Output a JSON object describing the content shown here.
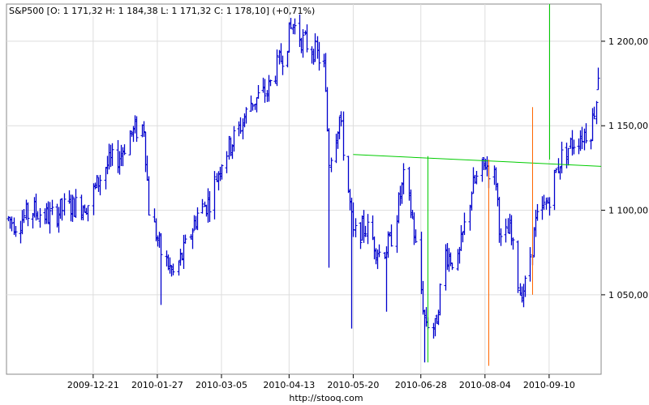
{
  "chart_data": {
    "type": "ohlc",
    "title": "S&P500 [O: 1 171,32  H: 1 184,38  L: 1 171,32  C: 1 178,10] (+0,71%)",
    "xlabel": "",
    "ylabel": "",
    "footer": "http://stooq.com",
    "ylim": [
      1003,
      1222
    ],
    "yticks": [
      "1 050,00",
      "1 100,00",
      "1 150,00",
      "1 200,00"
    ],
    "ytick_values": [
      1050,
      1100,
      1150,
      1200
    ],
    "xticks": [
      "2009-12-21",
      "2010-01-27",
      "2010-03-05",
      "2010-04-13",
      "2010-05-20",
      "2010-06-28",
      "2010-08-04",
      "2010-09-10"
    ],
    "xtick_dates": [
      "2009-12-21",
      "2010-01-27",
      "2010-03-05",
      "2010-04-13",
      "2010-05-20",
      "2010-06-28",
      "2010-08-04",
      "2010-09-10"
    ],
    "xlim": [
      "2009-11-01",
      "2010-10-10"
    ],
    "grid": true,
    "colors": {
      "bars": "#0000cc",
      "trendline": "#00cc00",
      "vline_green": "#00cc00",
      "vline_orange": "#ff6600",
      "grid": "#dddddd",
      "axis": "#888888"
    },
    "anchors": [
      [
        "2009-11-02",
        1095
      ],
      [
        "2009-11-06",
        1092
      ],
      [
        "2009-11-16",
        1100
      ],
      [
        "2009-11-26",
        1096
      ],
      [
        "2009-12-05",
        1102
      ],
      [
        "2009-12-18",
        1104
      ],
      [
        "2009-12-28",
        1126
      ],
      [
        "2010-01-05",
        1132
      ],
      [
        "2010-01-11",
        1145
      ],
      [
        "2010-01-19",
        1150
      ],
      [
        "2010-01-22",
        1101
      ],
      [
        "2010-01-29",
        1075
      ],
      [
        "2010-02-05",
        1062
      ],
      [
        "2010-02-11",
        1075
      ],
      [
        "2010-02-19",
        1098
      ],
      [
        "2010-02-26",
        1106
      ],
      [
        "2010-03-05",
        1130
      ],
      [
        "2010-03-15",
        1148
      ],
      [
        "2010-03-22",
        1164
      ],
      [
        "2010-03-31",
        1170
      ],
      [
        "2010-04-09",
        1192
      ],
      [
        "2010-04-15",
        1210
      ],
      [
        "2010-04-21",
        1200
      ],
      [
        "2010-04-27",
        1195
      ],
      [
        "2010-05-03",
        1185
      ],
      [
        "2010-05-06",
        1130
      ],
      [
        "2010-05-12",
        1155
      ],
      [
        "2010-05-20",
        1085
      ],
      [
        "2010-05-27",
        1090
      ],
      [
        "2010-06-04",
        1075
      ],
      [
        "2010-06-10",
        1080
      ],
      [
        "2010-06-18",
        1118
      ],
      [
        "2010-06-23",
        1095
      ],
      [
        "2010-06-30",
        1036
      ],
      [
        "2010-07-06",
        1030
      ],
      [
        "2010-07-12",
        1075
      ],
      [
        "2010-07-19",
        1068
      ],
      [
        "2010-07-27",
        1112
      ],
      [
        "2010-08-04",
        1128
      ],
      [
        "2010-08-10",
        1118
      ],
      [
        "2010-08-13",
        1080
      ],
      [
        "2010-08-18",
        1088
      ],
      [
        "2010-08-24",
        1052
      ],
      [
        "2010-08-27",
        1055
      ],
      [
        "2010-09-02",
        1092
      ],
      [
        "2010-09-09",
        1105
      ],
      [
        "2010-09-16",
        1130
      ],
      [
        "2010-09-23",
        1140
      ],
      [
        "2010-09-29",
        1145
      ],
      [
        "2010-10-04",
        1148
      ],
      [
        "2010-10-08",
        1172
      ]
    ],
    "last_bar": {
      "date": "2010-10-08",
      "open": 1171.32,
      "high": 1184.38,
      "low": 1171.32,
      "close": 1178.1
    },
    "spikes": [
      {
        "date": "2010-01-29",
        "low": 1044
      },
      {
        "date": "2010-05-06",
        "low": 1066
      },
      {
        "date": "2010-05-19",
        "low": 1030
      },
      {
        "date": "2010-06-08",
        "low": 1040
      },
      {
        "date": "2010-06-30",
        "low": 1010
      }
    ],
    "trendline": {
      "from": [
        "2010-05-20",
        1133
      ],
      "to": [
        "2010-10-10",
        1126
      ]
    },
    "vlines": [
      {
        "color": "green",
        "date": "2010-07-02",
        "from": 1010,
        "to": 1132
      },
      {
        "color": "orange",
        "date": "2010-08-06",
        "from": 1008,
        "to": 1130
      },
      {
        "color": "orange",
        "date": "2010-08-31",
        "from": 1050,
        "to": 1161
      },
      {
        "color": "green",
        "date": "2010-09-10",
        "from": 1130,
        "to": 1222
      }
    ]
  }
}
